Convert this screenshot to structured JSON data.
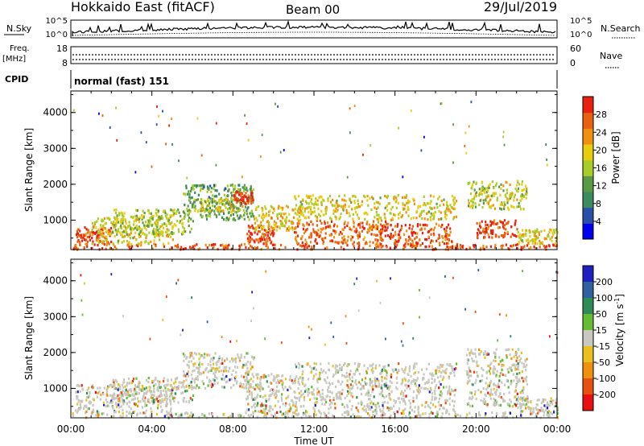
{
  "header": {
    "title": "Hokkaido East (fitACF)",
    "beam": "Beam 00",
    "date": "29/Jul/2019"
  },
  "summary_panels": {
    "nsky_label": "N.Sky",
    "nsearch_label": "N.Search",
    "nsky_ticks": [
      "10^5",
      "10^0"
    ],
    "nsearch_ticks": [
      "10^5",
      "10^0"
    ],
    "freq_label_1": "Freq.",
    "freq_label_2": "[MHz]",
    "freq_ticks": [
      "18",
      "8"
    ],
    "nave_label": "Nave",
    "nave_ticks": [
      "60",
      "0"
    ],
    "cpid_label": "CPID",
    "cpid_text": "normal (fast) 151"
  },
  "time_axis": {
    "label": "Time UT",
    "ticks": [
      "00:00",
      "04:00",
      "08:00",
      "12:00",
      "16:00",
      "20:00",
      "00:00"
    ]
  },
  "chart_data": [
    {
      "type": "heatmap",
      "name": "Power",
      "ylabel": "Slant Range [km]",
      "xlabel": "Time UT",
      "ylim": [
        180,
        4600
      ],
      "yticks": [
        "1000",
        "2000",
        "3000",
        "4000"
      ],
      "colorbar": {
        "label": "Power [dB]",
        "ticks": [
          "4",
          "8",
          "12",
          "16",
          "20",
          "24",
          "28"
        ],
        "colors": [
          "#0000ee",
          "#2a4fa8",
          "#3b8a60",
          "#5a9a45",
          "#a8cc28",
          "#e8cc10",
          "#f09010",
          "#e86010",
          "#e82010"
        ]
      },
      "regions": [
        {
          "t0": 0.0,
          "t1": 24.0,
          "r0": 180,
          "r1": 330,
          "level": 0.9
        },
        {
          "t0": 0.2,
          "t1": 2.0,
          "r0": 300,
          "r1": 800,
          "level": 0.95
        },
        {
          "t0": 1.0,
          "t1": 5.0,
          "r0": 330,
          "r1": 1100,
          "level": 0.6
        },
        {
          "t0": 2.0,
          "t1": 6.0,
          "r0": 600,
          "r1": 1300,
          "level": 0.5
        },
        {
          "t0": 5.5,
          "t1": 9.0,
          "r0": 1000,
          "r1": 2000,
          "level": 0.35
        },
        {
          "t0": 6.0,
          "t1": 8.5,
          "r0": 1200,
          "r1": 1600,
          "level": 0.55
        },
        {
          "t0": 8.0,
          "t1": 9.0,
          "r0": 1450,
          "r1": 1800,
          "level": 0.95
        },
        {
          "t0": 8.6,
          "t1": 10.0,
          "r0": 330,
          "r1": 850,
          "level": 0.95
        },
        {
          "t0": 9.0,
          "t1": 11.0,
          "r0": 700,
          "r1": 1400,
          "level": 0.65
        },
        {
          "t0": 11.0,
          "t1": 15.5,
          "r0": 330,
          "r1": 1000,
          "level": 0.85
        },
        {
          "t0": 11.0,
          "t1": 19.0,
          "r0": 1000,
          "r1": 1700,
          "level": 0.6
        },
        {
          "t0": 15.0,
          "t1": 18.8,
          "r0": 330,
          "r1": 900,
          "level": 0.9
        },
        {
          "t0": 19.5,
          "t1": 22.5,
          "r0": 1300,
          "r1": 2100,
          "level": 0.55
        },
        {
          "t0": 20.0,
          "t1": 22.0,
          "r0": 500,
          "r1": 1000,
          "level": 0.95
        },
        {
          "t0": 22.0,
          "t1": 24.0,
          "r0": 330,
          "r1": 750,
          "level": 0.6
        }
      ]
    },
    {
      "type": "heatmap",
      "name": "Velocity",
      "ylabel": "Slant Range [km]",
      "xlabel": "Time UT",
      "ylim": [
        180,
        4600
      ],
      "yticks": [
        "1000",
        "2000",
        "3000",
        "4000"
      ],
      "colorbar": {
        "label": "Velocity [m s^-1]",
        "ticks": [
          "200",
          "100",
          "50",
          "15",
          "-15",
          "-50",
          "-100",
          "-200"
        ],
        "colors": [
          "#2020c0",
          "#3060a0",
          "#2e8b57",
          "#66bb33",
          "#c8c8c0",
          "#e8c020",
          "#f09010",
          "#e85010",
          "#e81010"
        ]
      },
      "regions": [
        {
          "t0": 0.0,
          "t1": 24.0,
          "r0": 180,
          "r1": 330,
          "level": 0.45
        },
        {
          "t0": 0.2,
          "t1": 5.0,
          "r0": 330,
          "r1": 1100,
          "level": 0.5
        },
        {
          "t0": 2.0,
          "t1": 6.0,
          "r0": 600,
          "r1": 1300,
          "level": 0.5
        },
        {
          "t0": 5.5,
          "t1": 9.0,
          "r0": 1000,
          "r1": 2000,
          "level": 0.5
        },
        {
          "t0": 8.6,
          "t1": 11.0,
          "r0": 330,
          "r1": 1400,
          "level": 0.5
        },
        {
          "t0": 11.0,
          "t1": 19.0,
          "r0": 330,
          "r1": 1700,
          "level": 0.5
        },
        {
          "t0": 19.5,
          "t1": 22.5,
          "r0": 500,
          "r1": 2100,
          "level": 0.5
        },
        {
          "t0": 22.0,
          "t1": 24.0,
          "r0": 330,
          "r1": 750,
          "level": 0.5
        }
      ]
    }
  ]
}
